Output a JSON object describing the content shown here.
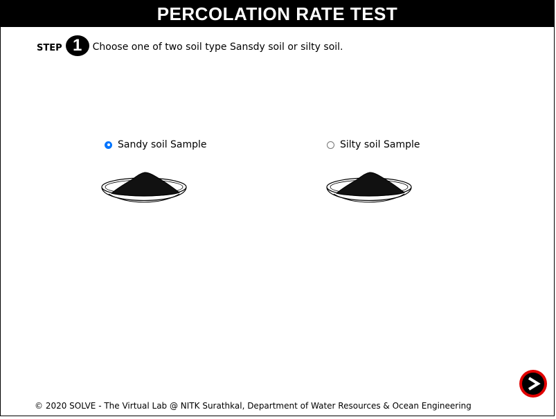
{
  "header": {
    "title": "PERCOLATION RATE TEST"
  },
  "step": {
    "label": "STEP",
    "number": "1",
    "instruction": "Choose one of two soil type Sansdy soil or silty soil."
  },
  "samples": [
    {
      "label": "Sandy soil Sample",
      "selected": true,
      "icon": "soil-bowl-icon"
    },
    {
      "label": "Silty soil Sample",
      "selected": false,
      "icon": "soil-bowl-icon"
    }
  ],
  "footer": {
    "text": "© 2020 SOLVE - The Virtual Lab @ NITK Surathkal, Department of Water Resources & Ocean Engineering"
  },
  "navigation": {
    "next_icon": "next-arrow-icon"
  },
  "colors": {
    "title_bg": "#000000",
    "title_text": "#ffffff",
    "radio_selected": "#0075ff",
    "next_ring": "#e00000"
  }
}
